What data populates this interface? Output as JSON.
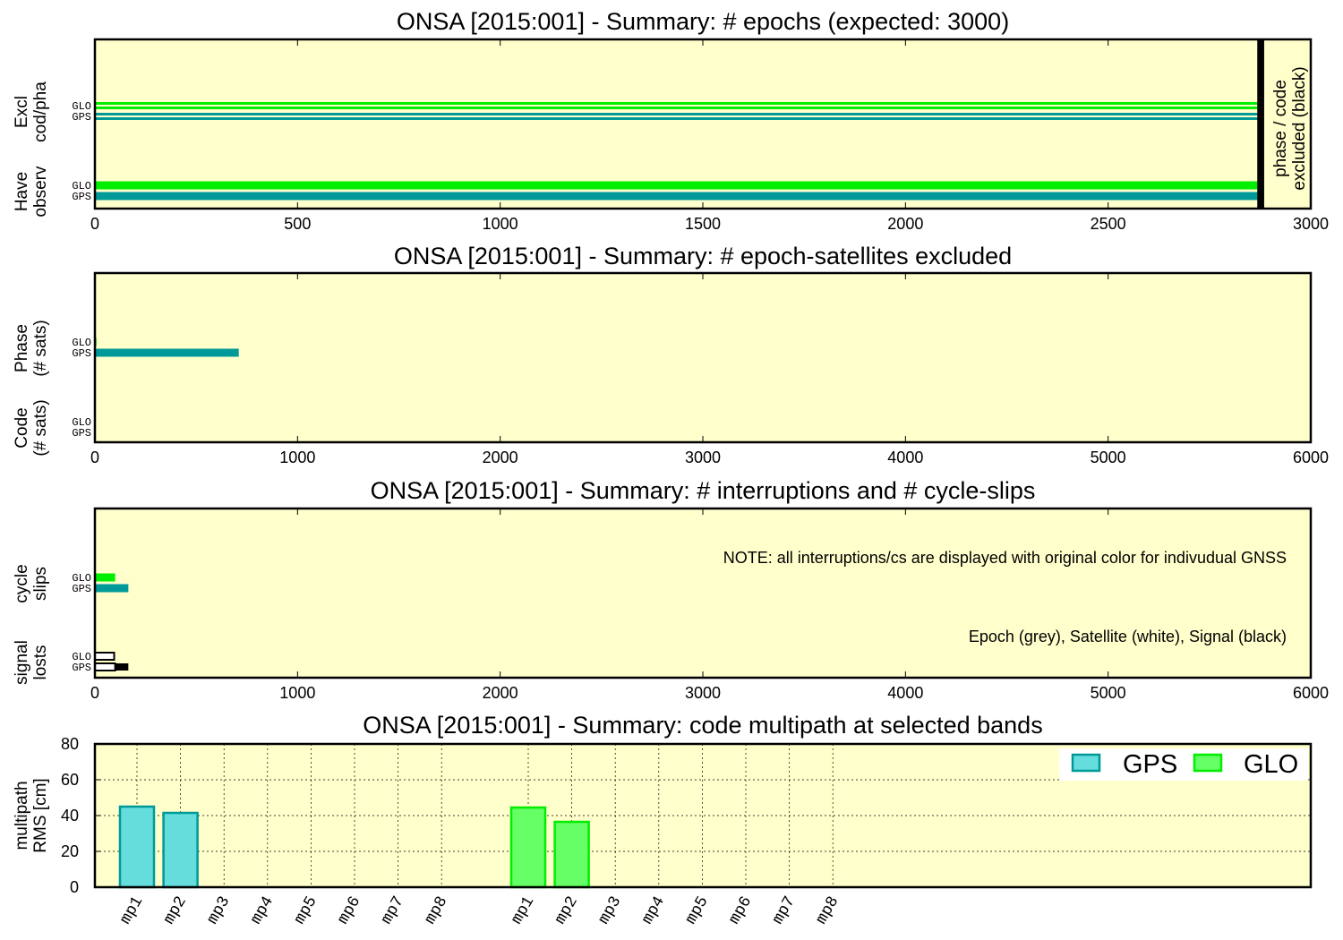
{
  "colors": {
    "background": "#ffffcc",
    "gps": "#009999",
    "glo": "#00ee00",
    "gps_mp_fill": "#66dddd",
    "glo_mp_fill": "#66ff66",
    "excluded": "#000000"
  },
  "chart_data": [
    {
      "type": "bar",
      "orientation": "horizontal",
      "title": "ONSA [2015:001] - Summary: # epochs (expected: 3000)",
      "xlim": [
        0,
        3000
      ],
      "xticks": [
        "0",
        "500",
        "1000",
        "1500",
        "2000",
        "2500",
        "3000"
      ],
      "groups": [
        {
          "label_lines": [
            "Excl",
            "cod/pha"
          ]
        },
        {
          "label_lines": [
            "Have",
            "observ"
          ]
        }
      ],
      "annotation_lines": [
        "phase / code",
        "excluded (black)"
      ],
      "series": [
        {
          "group": 0,
          "system": "GLO",
          "y_offset": -13,
          "bars": [
            {
              "start": 0,
              "value": 2875,
              "style": "pair-glo"
            }
          ]
        },
        {
          "group": 0,
          "system": "GPS",
          "y_offset": -1,
          "bars": [
            {
              "start": 0,
              "value": 2875,
              "style": "pair-gps"
            }
          ]
        },
        {
          "group": 1,
          "system": "GLO",
          "y_offset": -13,
          "bars": [
            {
              "start": 0,
              "value": 2875,
              "style": "solid-glo"
            }
          ]
        },
        {
          "group": 1,
          "system": "GPS",
          "y_offset": -1,
          "bars": [
            {
              "start": 0,
              "value": 2875,
              "style": "solid-gps"
            }
          ]
        }
      ],
      "excluded_marker": {
        "start": 2868,
        "end": 2885
      }
    },
    {
      "type": "bar",
      "orientation": "horizontal",
      "title": "ONSA [2015:001] - Summary: # epoch-satellites excluded",
      "xlim": [
        0,
        6000
      ],
      "xticks": [
        "0",
        "1000",
        "2000",
        "3000",
        "4000",
        "5000",
        "6000"
      ],
      "groups": [
        {
          "label_lines": [
            "Phase",
            "(# sats)"
          ]
        },
        {
          "label_lines": [
            "Code",
            "(# sats)"
          ]
        }
      ],
      "series": [
        {
          "group": 0,
          "system": "GLO",
          "y_offset": -13,
          "bars": [
            {
              "start": 0,
              "value": 8,
              "style": "solid-glo"
            }
          ]
        },
        {
          "group": 0,
          "system": "GPS",
          "y_offset": -1,
          "bars": [
            {
              "start": 0,
              "value": 710,
              "style": "solid-gps"
            }
          ]
        },
        {
          "group": 1,
          "system": "GLO",
          "y_offset": -13,
          "bars": []
        },
        {
          "group": 1,
          "system": "GPS",
          "y_offset": -1,
          "bars": []
        }
      ]
    },
    {
      "type": "bar",
      "orientation": "horizontal",
      "title": "ONSA [2015:001] - Summary: # interruptions and # cycle-slips",
      "xlim": [
        0,
        6000
      ],
      "xticks": [
        "0",
        "1000",
        "2000",
        "3000",
        "4000",
        "5000",
        "6000"
      ],
      "groups": [
        {
          "label_lines": [
            "cycle",
            "slips"
          ]
        },
        {
          "label_lines": [
            "signal",
            "losts"
          ]
        }
      ],
      "notes": [
        "NOTE: all interruptions/cs are displayed with original color for indivudual GNSS",
        "Epoch (grey), Satellite (white), Signal (black)"
      ],
      "series": [
        {
          "group": 0,
          "system": "GLO",
          "y_offset": -13,
          "bars": [
            {
              "start": 0,
              "value": 100,
              "style": "solid-glo"
            }
          ]
        },
        {
          "group": 0,
          "system": "GPS",
          "y_offset": -1,
          "bars": [
            {
              "start": 0,
              "value": 165,
              "style": "solid-gps"
            }
          ]
        },
        {
          "group": 1,
          "system": "GLO",
          "y_offset": -13,
          "bars": [
            {
              "start": 0,
              "value": 95,
              "style": "outline"
            }
          ]
        },
        {
          "group": 1,
          "system": "GPS",
          "y_offset": -1,
          "bars": [
            {
              "start": 0,
              "value": 100,
              "style": "outline"
            },
            {
              "start": 100,
              "value": 65,
              "style": "black"
            }
          ]
        }
      ]
    },
    {
      "type": "bar",
      "title": "ONSA [2015:001] - Summary: code multipath at selected bands",
      "ylabel_lines": [
        "multipath",
        "RMS [cm]"
      ],
      "ylim": [
        0,
        80
      ],
      "yticks": [
        "0",
        "20",
        "40",
        "60",
        "80"
      ],
      "grid": true,
      "legend": "top-right",
      "categories": [
        "mp1",
        "mp2",
        "mp3",
        "mp4",
        "mp5",
        "mp6",
        "mp7",
        "mp8",
        "mp1",
        "mp2",
        "mp3",
        "mp4",
        "mp5",
        "mp6",
        "mp7",
        "mp8"
      ],
      "series": [
        {
          "name": "GPS",
          "values": [
            45,
            41.5,
            0,
            0,
            0,
            0,
            0,
            0,
            null,
            null,
            null,
            null,
            null,
            null,
            null,
            null
          ]
        },
        {
          "name": "GLO",
          "values": [
            null,
            null,
            null,
            null,
            null,
            null,
            null,
            null,
            44.5,
            36.5,
            0,
            0,
            0,
            0,
            0,
            0
          ]
        }
      ]
    }
  ]
}
